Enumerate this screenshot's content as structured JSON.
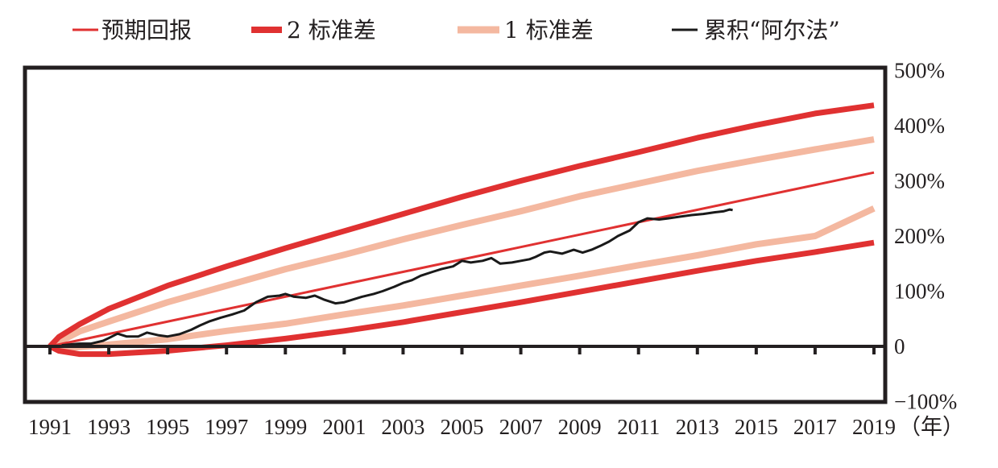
{
  "chart_data": {
    "type": "line",
    "title": "",
    "xlabel": "",
    "ylabel": "",
    "x_unit_label": "（年）",
    "xlim": [
      1991,
      2019
    ],
    "ylim": [
      -100,
      500
    ],
    "x_ticks": [
      "1991",
      "1993",
      "1995",
      "1997",
      "1999",
      "2001",
      "2003",
      "2005",
      "2007",
      "2009",
      "2011",
      "2013",
      "2015",
      "2017",
      "2019"
    ],
    "y_ticks": [
      "500%",
      "400%",
      "300%",
      "200%",
      "100%",
      "0",
      "−100%"
    ],
    "y_tick_values": [
      500,
      400,
      300,
      200,
      100,
      0,
      -100
    ],
    "legend_position": "top",
    "grid": false,
    "series": [
      {
        "name": "预期回报",
        "color": "#e03131",
        "x": [
          1991,
          2019
        ],
        "values": [
          0,
          315
        ]
      },
      {
        "name": "2 标准差",
        "color": "#e03131",
        "x": [
          1991,
          1991.3,
          1992,
          1993,
          1995,
          1997,
          1999,
          2001,
          2003,
          2005,
          2007,
          2009,
          2011,
          2013,
          2015,
          2017,
          2019
        ],
        "values": [
          0,
          17,
          40,
          68,
          110,
          145,
          178,
          209,
          240,
          271,
          300,
          327,
          352,
          378,
          401,
          422,
          437
        ],
        "lower": [
          0,
          -8,
          -14,
          -14,
          -8,
          2,
          14,
          28,
          44,
          62,
          80,
          99,
          118,
          137,
          155,
          171,
          188
        ]
      },
      {
        "name": "1 标准差",
        "color": "#f4b8a0",
        "x": [
          1991,
          1991.3,
          1992,
          1993,
          1995,
          1997,
          1999,
          2001,
          2003,
          2005,
          2007,
          2009,
          2011,
          2013,
          2015,
          2017,
          2019
        ],
        "values": [
          0,
          8,
          27,
          45,
          80,
          110,
          140,
          166,
          194,
          220,
          245,
          272,
          295,
          318,
          338,
          357,
          375
        ],
        "lower": [
          0,
          -4,
          -1,
          3,
          13,
          28,
          41,
          58,
          74,
          92,
          110,
          128,
          147,
          165,
          185,
          200,
          250
        ]
      },
      {
        "name": "累积“阿尔法”",
        "color": "#1a1a1a",
        "x": [
          1991.4,
          1991.8,
          1992.0,
          1992.4,
          1992.8,
          1993.0,
          1993.3,
          1993.6,
          1994.0,
          1994.3,
          1994.7,
          1995.0,
          1995.4,
          1995.8,
          1996.1,
          1996.4,
          1996.8,
          1997.2,
          1997.6,
          1998.0,
          1998.4,
          1998.8,
          1999.0,
          1999.3,
          1999.7,
          2000.0,
          2000.3,
          2000.7,
          2001.0,
          2001.3,
          2001.6,
          2002.0,
          2002.3,
          2002.7,
          2003.0,
          2003.3,
          2003.6,
          2004.0,
          2004.3,
          2004.7,
          2005.0,
          2005.3,
          2005.7,
          2006.0,
          2006.3,
          2006.7,
          2007.0,
          2007.3,
          2007.5,
          2007.8,
          2008.0,
          2008.4,
          2008.8,
          2009.1,
          2009.4,
          2009.7,
          2010.0,
          2010.3,
          2010.7,
          2011.0,
          2011.3,
          2011.7,
          2012.0,
          2012.4,
          2012.8,
          2013.2,
          2013.6,
          2013.9,
          2014.1,
          2014.2
        ],
        "values": [
          2,
          4,
          5,
          5,
          10,
          15,
          23,
          18,
          18,
          25,
          20,
          18,
          22,
          30,
          38,
          45,
          52,
          58,
          65,
          80,
          90,
          92,
          95,
          90,
          88,
          92,
          85,
          78,
          80,
          85,
          90,
          95,
          100,
          108,
          115,
          120,
          128,
          135,
          140,
          145,
          155,
          152,
          155,
          160,
          150,
          152,
          155,
          158,
          162,
          170,
          172,
          168,
          175,
          170,
          175,
          182,
          190,
          200,
          210,
          225,
          232,
          230,
          232,
          235,
          238,
          240,
          243,
          245,
          248,
          247
        ]
      }
    ]
  }
}
